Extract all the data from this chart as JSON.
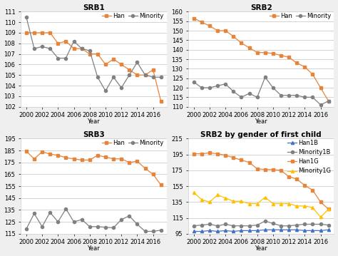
{
  "years": [
    2000,
    2001,
    2002,
    2003,
    2004,
    2005,
    2006,
    2007,
    2008,
    2009,
    2010,
    2011,
    2012,
    2013,
    2014,
    2015,
    2016,
    2017
  ],
  "srb1_han": [
    109,
    109,
    109,
    109,
    108,
    108.2,
    107.5,
    107.5,
    107,
    107,
    106,
    106.5,
    106,
    105.5,
    105,
    105,
    105.5,
    102.5
  ],
  "srb1_minority": [
    110.5,
    107.5,
    107.7,
    107.5,
    106.6,
    106.6,
    108.2,
    107.5,
    107.3,
    104.8,
    103.5,
    104.8,
    103.8,
    105.0,
    106.2,
    105.0,
    104.8,
    104.8
  ],
  "srb2_han": [
    156.5,
    154.5,
    152.5,
    150,
    150,
    147,
    143.5,
    141,
    138.5,
    138.5,
    138,
    137,
    136,
    133,
    131,
    127,
    120,
    113
  ],
  "srb2_minority": [
    123,
    120,
    120,
    121,
    122,
    118,
    115,
    117,
    115,
    125.5,
    120,
    116,
    116,
    116,
    115,
    115,
    111,
    113
  ],
  "srb3_han": [
    184.5,
    178,
    184,
    182,
    181,
    179,
    178,
    177,
    177,
    181,
    179.5,
    178,
    178,
    175,
    176,
    170,
    165,
    156
  ],
  "srb3_minority": [
    119,
    132,
    121,
    133,
    125,
    136,
    125,
    127,
    121,
    121,
    120.5,
    120,
    127,
    130,
    123,
    117,
    117,
    118
  ],
  "srb2g_han1b": [
    98,
    98,
    99,
    98,
    99,
    98,
    99,
    99,
    99,
    100,
    100,
    100,
    100,
    100,
    99,
    99,
    99,
    100
  ],
  "srb2g_min1b": [
    105,
    106,
    107,
    105,
    107,
    105,
    105,
    105,
    106,
    111,
    108,
    105,
    105,
    106,
    107,
    107,
    107,
    106
  ],
  "srb2g_han1g": [
    196,
    196,
    197,
    196,
    194,
    191,
    188,
    185,
    177,
    176,
    176,
    175,
    167,
    164,
    156,
    150,
    135,
    126
  ],
  "srb2g_min1g": [
    147,
    138,
    135,
    144,
    140,
    136,
    136,
    133,
    133,
    141,
    133,
    133,
    133,
    130,
    130,
    128,
    116,
    126
  ],
  "han_color": "#E8833A",
  "minority_color": "#808080",
  "han1b_color": "#4472C4",
  "min1b_color": "#808080",
  "han1g_color": "#E8833A",
  "min1g_color": "#FFC000",
  "bg_color": "#EFEFEF",
  "plot_bg": "#FFFFFF",
  "title_fontsize": 7.5,
  "tick_fontsize": 6,
  "legend_fontsize": 6
}
